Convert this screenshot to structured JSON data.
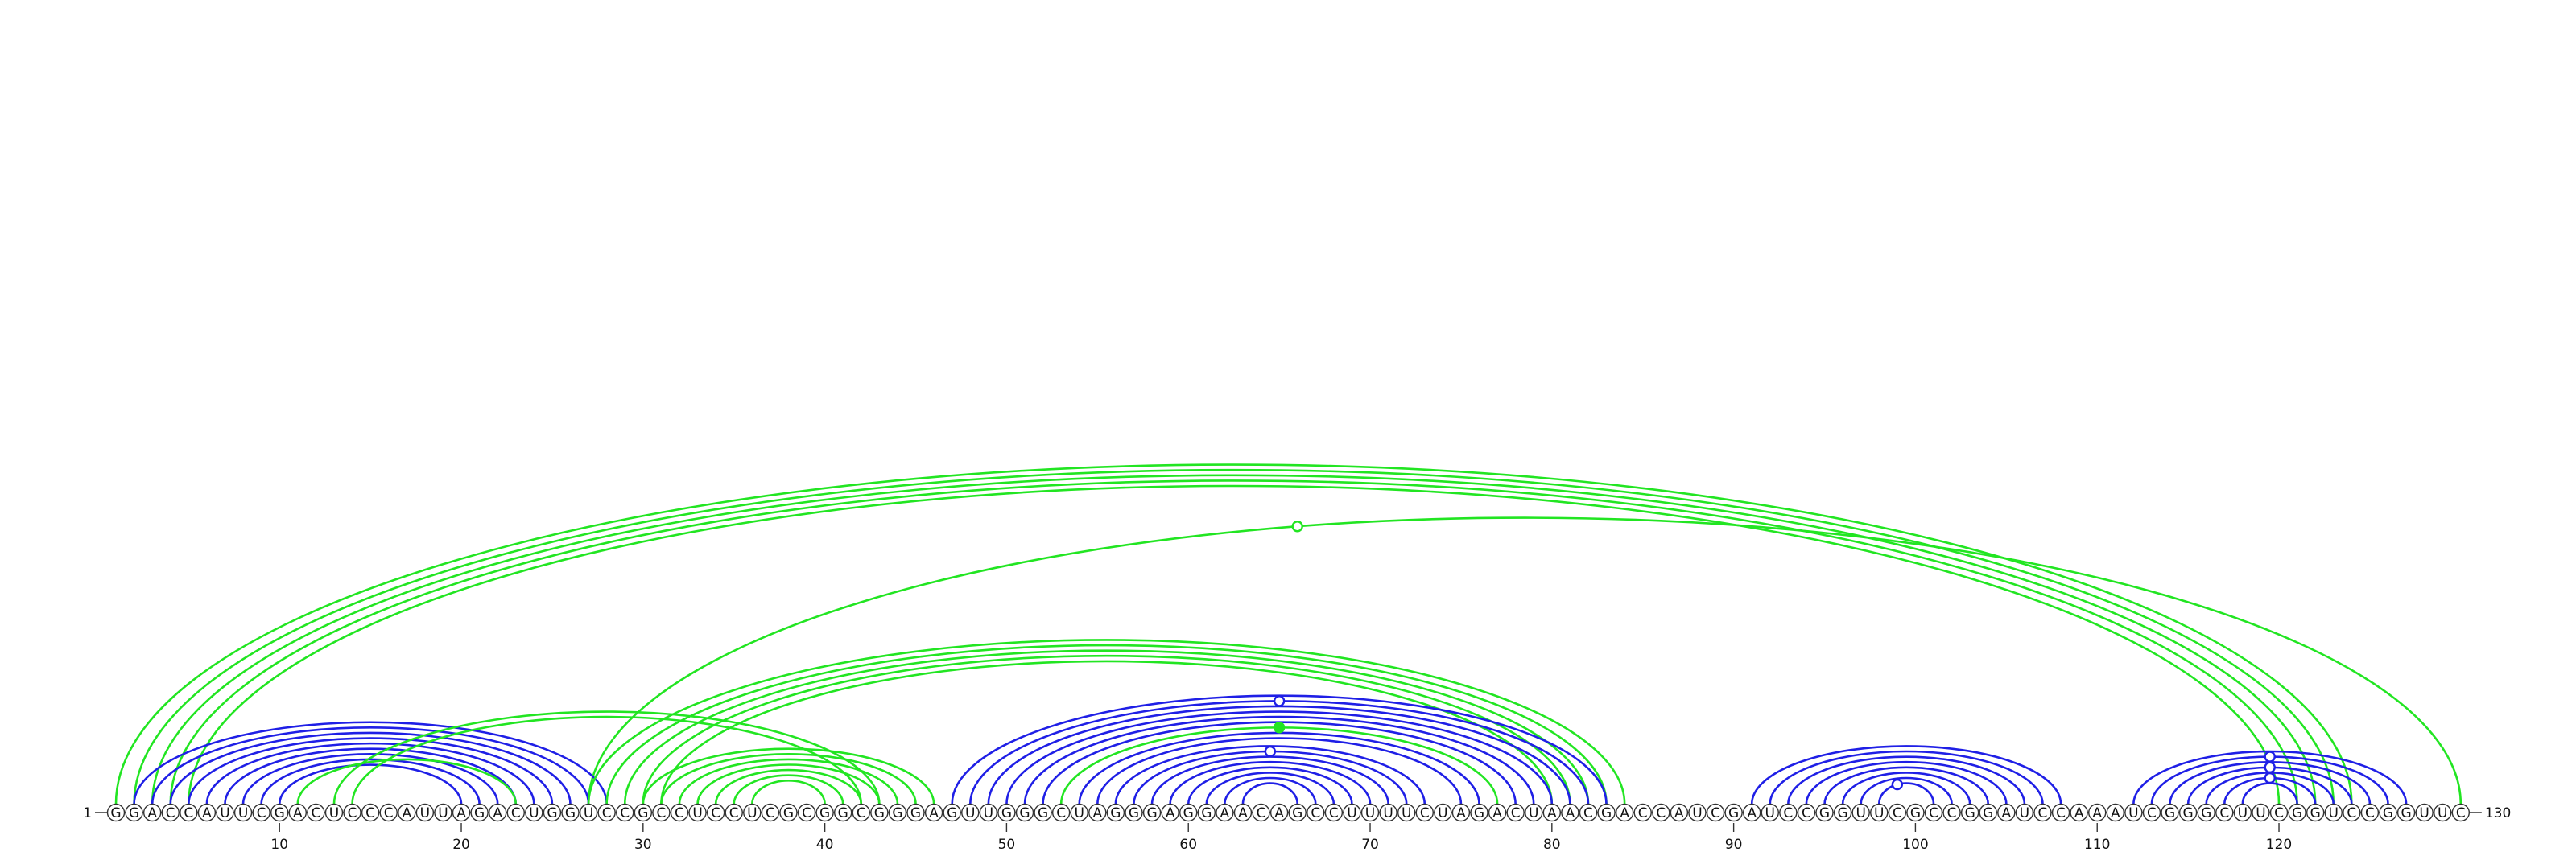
{
  "sequence": "GGACCAUUCGACUCCCAUUAGACUGGUCCGCCUCCUCGCGGCGGGAGUUGGGCUAGGGAGGAACAGCCUUUUCUAGACUAACGACCAUCGAUCCGGUUCGCCGGAUCCAAAUCGGGCUUCGGUCCGGUUC",
  "start_label": "1",
  "end_label": "130",
  "axis_ticks": [
    10,
    20,
    30,
    40,
    50,
    60,
    70,
    80,
    90,
    100,
    110,
    120
  ],
  "colors": {
    "blue": "#1f1fe6",
    "green": "#22e522"
  },
  "arcs": [
    {
      "i": 1,
      "j": 124,
      "c": "green"
    },
    {
      "i": 2,
      "j": 123,
      "c": "green"
    },
    {
      "i": 3,
      "j": 122,
      "c": "green"
    },
    {
      "i": 4,
      "j": 121,
      "c": "green"
    },
    {
      "i": 5,
      "j": 120,
      "c": "green"
    },
    {
      "i": 27,
      "j": 130,
      "c": "green"
    },
    {
      "i": 2,
      "j": 28,
      "c": "blue"
    },
    {
      "i": 3,
      "j": 27,
      "c": "blue"
    },
    {
      "i": 4,
      "j": 26,
      "c": "blue"
    },
    {
      "i": 5,
      "j": 25,
      "c": "blue"
    },
    {
      "i": 6,
      "j": 24,
      "c": "blue"
    },
    {
      "i": 7,
      "j": 23,
      "c": "blue"
    },
    {
      "i": 8,
      "j": 22,
      "c": "blue"
    },
    {
      "i": 9,
      "j": 21,
      "c": "blue"
    },
    {
      "i": 10,
      "j": 20,
      "c": "blue"
    },
    {
      "i": 11,
      "j": 23,
      "c": "green"
    },
    {
      "i": 13,
      "j": 43,
      "c": "green"
    },
    {
      "i": 14,
      "j": 42,
      "c": "green"
    },
    {
      "i": 27,
      "j": 84,
      "c": "green"
    },
    {
      "i": 28,
      "j": 83,
      "c": "green"
    },
    {
      "i": 29,
      "j": 82,
      "c": "green"
    },
    {
      "i": 30,
      "j": 81,
      "c": "green"
    },
    {
      "i": 31,
      "j": 80,
      "c": "green"
    },
    {
      "i": 30,
      "j": 46,
      "c": "green"
    },
    {
      "i": 31,
      "j": 45,
      "c": "green"
    },
    {
      "i": 32,
      "j": 44,
      "c": "green"
    },
    {
      "i": 33,
      "j": 43,
      "c": "green"
    },
    {
      "i": 34,
      "j": 42,
      "c": "green"
    },
    {
      "i": 35,
      "j": 41,
      "c": "green"
    },
    {
      "i": 36,
      "j": 40,
      "c": "green"
    },
    {
      "i": 47,
      "j": 83,
      "c": "blue"
    },
    {
      "i": 48,
      "j": 82,
      "c": "blue"
    },
    {
      "i": 49,
      "j": 81,
      "c": "blue"
    },
    {
      "i": 50,
      "j": 80,
      "c": "blue"
    },
    {
      "i": 51,
      "j": 79,
      "c": "blue"
    },
    {
      "i": 52,
      "j": 78,
      "c": "blue"
    },
    {
      "i": 53,
      "j": 77,
      "c": "green"
    },
    {
      "i": 54,
      "j": 76,
      "c": "blue"
    },
    {
      "i": 55,
      "j": 75,
      "c": "blue"
    },
    {
      "i": 56,
      "j": 73,
      "c": "blue"
    },
    {
      "i": 57,
      "j": 72,
      "c": "blue"
    },
    {
      "i": 58,
      "j": 71,
      "c": "blue"
    },
    {
      "i": 59,
      "j": 70,
      "c": "blue"
    },
    {
      "i": 60,
      "j": 69,
      "c": "blue"
    },
    {
      "i": 61,
      "j": 68,
      "c": "blue"
    },
    {
      "i": 62,
      "j": 67,
      "c": "blue"
    },
    {
      "i": 63,
      "j": 66,
      "c": "blue"
    },
    {
      "i": 91,
      "j": 108,
      "c": "blue"
    },
    {
      "i": 92,
      "j": 107,
      "c": "blue"
    },
    {
      "i": 93,
      "j": 106,
      "c": "blue"
    },
    {
      "i": 94,
      "j": 105,
      "c": "blue"
    },
    {
      "i": 95,
      "j": 104,
      "c": "blue"
    },
    {
      "i": 96,
      "j": 103,
      "c": "blue"
    },
    {
      "i": 97,
      "j": 102,
      "c": "blue"
    },
    {
      "i": 98,
      "j": 101,
      "c": "blue"
    },
    {
      "i": 112,
      "j": 127,
      "c": "blue"
    },
    {
      "i": 113,
      "j": 126,
      "c": "blue"
    },
    {
      "i": 114,
      "j": 125,
      "c": "blue"
    },
    {
      "i": 115,
      "j": 124,
      "c": "blue"
    },
    {
      "i": 116,
      "j": 123,
      "c": "blue"
    },
    {
      "i": 117,
      "j": 122,
      "c": "blue"
    },
    {
      "i": 118,
      "j": 121,
      "c": "blue"
    }
  ],
  "markers": [
    {
      "pos": 66,
      "arc_i": 27,
      "arc_j": 130,
      "c": "green",
      "filled": false
    },
    {
      "pos": 65,
      "arc_i": 48,
      "arc_j": 82,
      "c": "blue",
      "filled": false
    },
    {
      "pos": 65,
      "arc_i": 53,
      "arc_j": 77,
      "c": "green",
      "filled": true
    },
    {
      "pos": 64.5,
      "arc_i": 57,
      "arc_j": 72,
      "c": "blue",
      "filled": false
    },
    {
      "pos": 99,
      "arc_i": 98,
      "arc_j": 101,
      "c": "blue",
      "filled": false
    },
    {
      "pos": 119.5,
      "arc_i": 113,
      "arc_j": 126,
      "c": "blue",
      "filled": false
    },
    {
      "pos": 119.5,
      "arc_i": 115,
      "arc_j": 124,
      "c": "blue",
      "filled": false
    },
    {
      "pos": 119.5,
      "arc_i": 117,
      "arc_j": 122,
      "c": "blue",
      "filled": false
    }
  ]
}
